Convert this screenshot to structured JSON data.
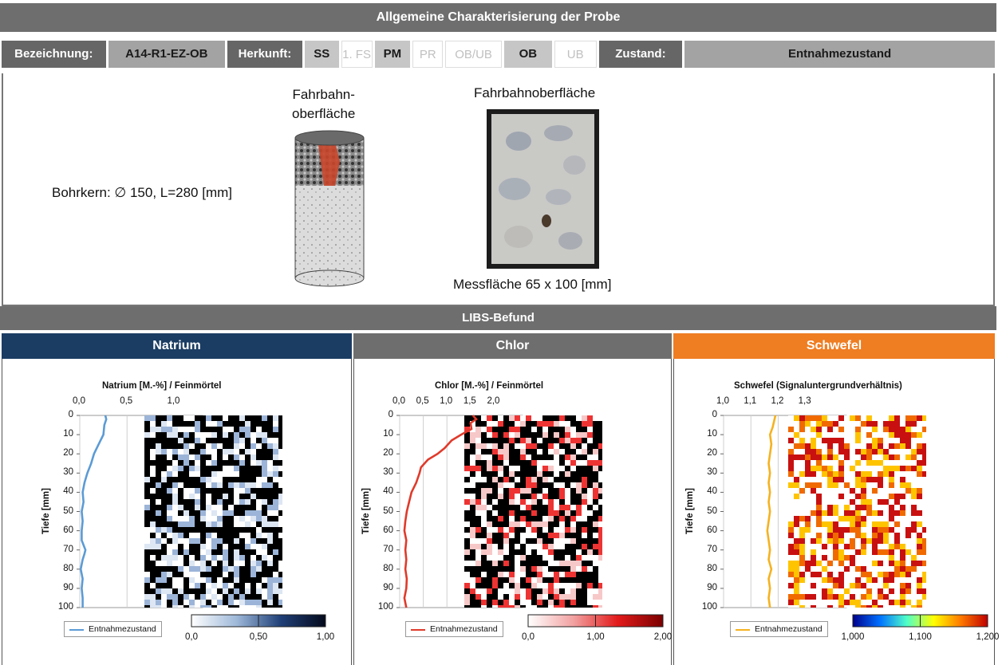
{
  "header": {
    "title": "Allgemeine Charakterisierung der Probe"
  },
  "info": {
    "bezeichnung_label": "Bezeichnung:",
    "bezeichnung_value": "A14-R1-EZ-OB",
    "herkunft_label": "Herkunft:",
    "herkunft_options": [
      "SS",
      "1. FS",
      "PM",
      "PR",
      "OB/UB",
      "OB",
      "UB"
    ],
    "zustand_label": "Zustand:",
    "zustand_value": "Entnahmezustand"
  },
  "sample": {
    "core_text": "Bohrkern: ∅ 150, L=280 [mm]",
    "core_top_label": "Fahrbahn-\noberfläche",
    "surface_label": "Fahrbahnoberfläche",
    "measure_label": "Messfläche 65 x 100 [mm]"
  },
  "libs": {
    "title": "LIBS-Befund"
  },
  "colors": {
    "natrium": "#1b3d63",
    "chlor": "#6e6e6e",
    "schwefel": "#ef7d22"
  },
  "sections": [
    "Natrium",
    "Chlor",
    "Schwefel"
  ],
  "chart_data": [
    {
      "type": "line",
      "title": "Natrium [M.-%] / Feinmörtel",
      "ylabel": "Tiefe [mm]",
      "x_ticks": [
        "0,0",
        "0,5",
        "1,0"
      ],
      "y_ticks": [
        "0",
        "10",
        "20",
        "30",
        "40",
        "50",
        "60",
        "70",
        "80",
        "90",
        "100"
      ],
      "xlim": [
        0,
        1.3
      ],
      "ylim": [
        0,
        100
      ],
      "series": [
        {
          "name": "Entnahmezustand",
          "color": "#5b9bd5",
          "depth": [
            0,
            2,
            5,
            10,
            15,
            20,
            25,
            30,
            35,
            40,
            45,
            50,
            55,
            60,
            65,
            70,
            72,
            75,
            80,
            85,
            90,
            95,
            100
          ],
          "values": [
            0.27,
            0.28,
            0.26,
            0.25,
            0.2,
            0.15,
            0.12,
            0.08,
            0.05,
            0.03,
            0.04,
            0.02,
            0.03,
            0.02,
            0.02,
            0.06,
            0.05,
            0.03,
            0.01,
            0.03,
            0.02,
            0.03,
            0.03
          ]
        }
      ],
      "colorbar": {
        "ticks": [
          "0,0",
          "0,50",
          "1,00"
        ]
      }
    },
    {
      "type": "line",
      "title": "Chlor [M.-%] / Feinmörtel",
      "ylabel": "Tiefe [mm]",
      "x_ticks": [
        "0,0",
        "0,5",
        "1,0",
        "1,5",
        "2,0"
      ],
      "y_ticks": [
        "0",
        "10",
        "20",
        "30",
        "40",
        "50",
        "60",
        "70",
        "80",
        "90",
        "100"
      ],
      "xlim": [
        0,
        2.6
      ],
      "ylim": [
        0,
        100
      ],
      "series": [
        {
          "name": "Entnahmezustand",
          "color": "#e03a2a",
          "depth": [
            0,
            2,
            4,
            7,
            10,
            13,
            17,
            20,
            23,
            27,
            30,
            35,
            40,
            45,
            50,
            55,
            60,
            65,
            70,
            75,
            80,
            85,
            90,
            95,
            100
          ],
          "values": [
            1.55,
            1.62,
            1.5,
            1.52,
            1.3,
            1.1,
            0.95,
            0.8,
            0.6,
            0.45,
            0.42,
            0.35,
            0.25,
            0.2,
            0.15,
            0.12,
            0.1,
            0.14,
            0.12,
            0.14,
            0.12,
            0.15,
            0.14,
            0.1,
            0.14
          ]
        }
      ],
      "colorbar": {
        "ticks": [
          "0,0",
          "1,00",
          "2,00"
        ]
      }
    },
    {
      "type": "line",
      "title": "Schwefel (Signaluntergrundverhältnis)",
      "ylabel": "Tiefe [mm]",
      "x_ticks": [
        "1,0",
        "1,1",
        "1,2",
        "1,3"
      ],
      "y_ticks": [
        "0",
        "10",
        "20",
        "30",
        "40",
        "50",
        "60",
        "70",
        "80",
        "90",
        "100"
      ],
      "xlim": [
        1.0,
        1.45
      ],
      "ylim": [
        0,
        100
      ],
      "series": [
        {
          "name": "Entnahmezustand",
          "color": "#f5b21f",
          "depth": [
            0,
            3,
            6,
            10,
            15,
            20,
            25,
            30,
            35,
            40,
            45,
            50,
            55,
            60,
            65,
            70,
            75,
            80,
            85,
            90,
            95,
            100
          ],
          "values": [
            1.19,
            1.185,
            1.18,
            1.17,
            1.175,
            1.17,
            1.165,
            1.17,
            1.165,
            1.17,
            1.165,
            1.17,
            1.165,
            1.16,
            1.165,
            1.17,
            1.165,
            1.175,
            1.165,
            1.17,
            1.165,
            1.17
          ]
        }
      ],
      "colorbar": {
        "ticks": [
          "1,000",
          "1,100",
          "1,200"
        ]
      }
    }
  ]
}
